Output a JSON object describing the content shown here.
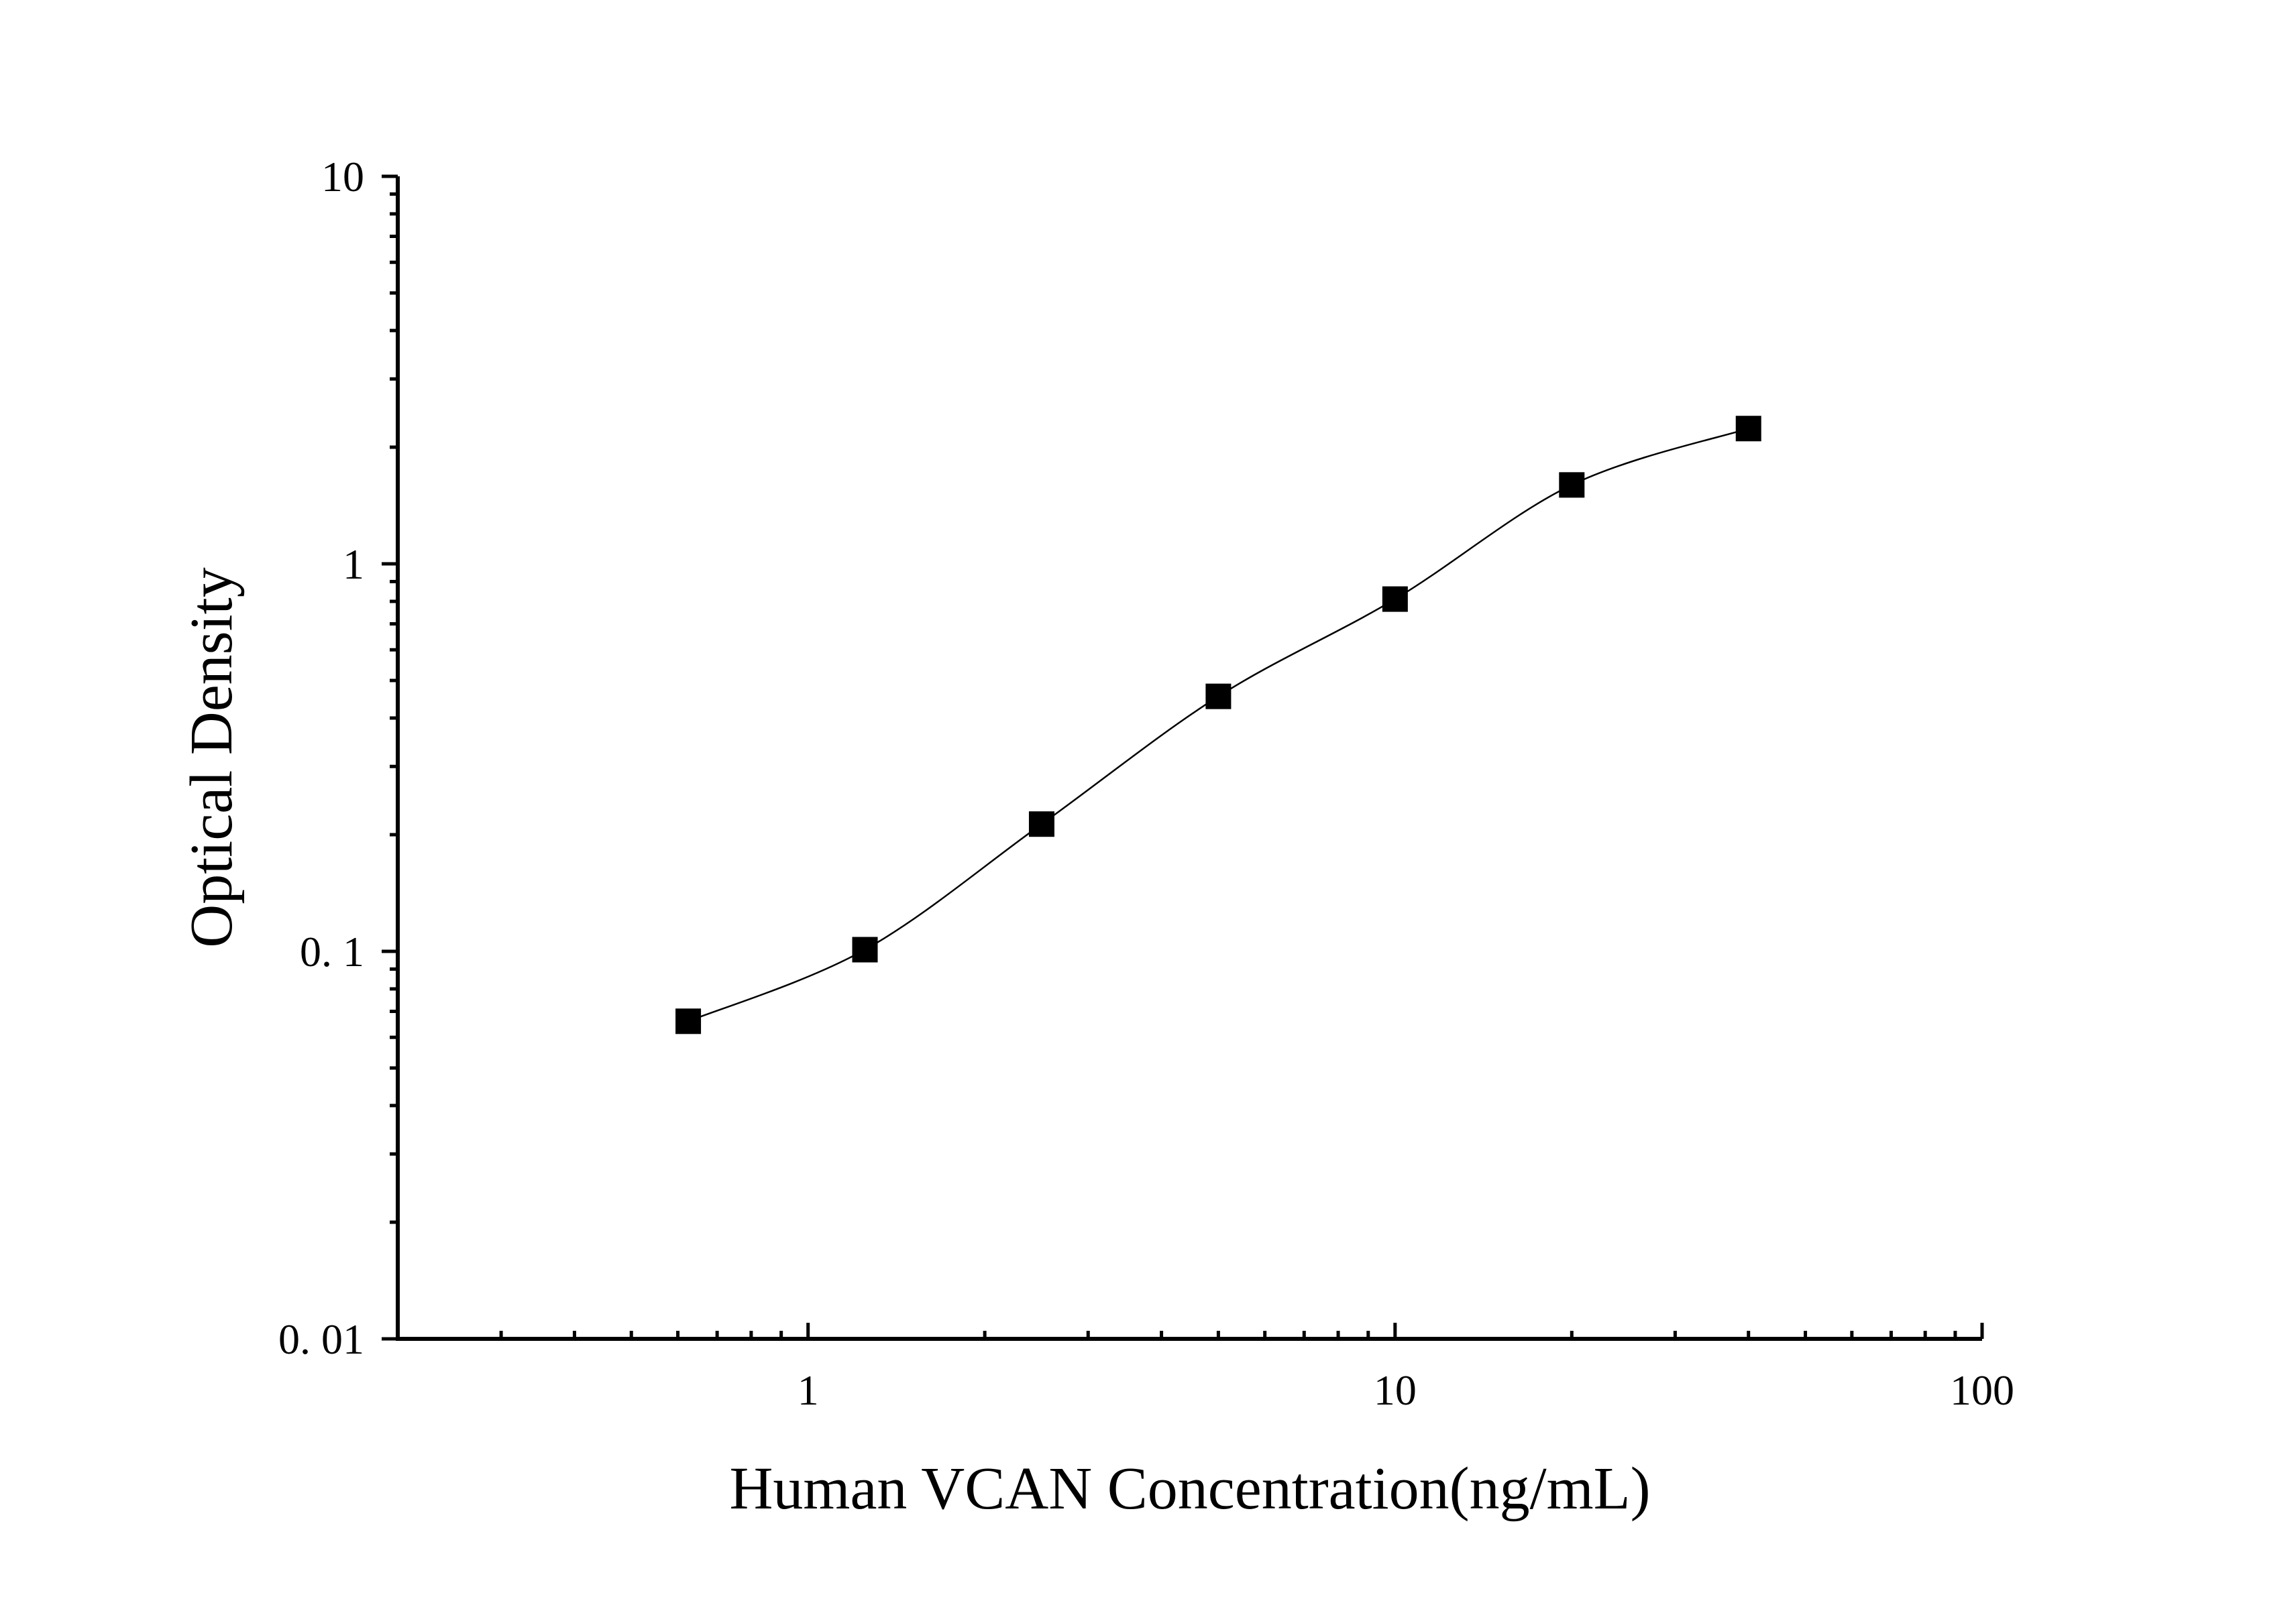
{
  "chart_data": {
    "type": "scatter",
    "title": "",
    "xlabel": "Human VCAN Concentration(ng/mL)",
    "ylabel": "Optical Density",
    "xscale": "log",
    "yscale": "log",
    "xlim": [
      0.2,
      100
    ],
    "ylim": [
      0.01,
      10
    ],
    "x_ticks": [
      {
        "value": 1,
        "label": "1"
      },
      {
        "value": 10,
        "label": "10"
      },
      {
        "value": 100,
        "label": "100"
      }
    ],
    "y_ticks": [
      {
        "value": 0.01,
        "label": "0. 01"
      },
      {
        "value": 0.1,
        "label": "0. 1"
      },
      {
        "value": 1,
        "label": "1"
      },
      {
        "value": 10,
        "label": "10"
      }
    ],
    "grid": false,
    "marker": "square",
    "color": "#000000",
    "fit_line": true,
    "series": [
      {
        "x": [
          0.625,
          1.25,
          2.5,
          5,
          10,
          20,
          40
        ],
        "y": [
          0.066,
          0.101,
          0.213,
          0.455,
          0.811,
          1.598,
          2.234
        ]
      }
    ]
  }
}
